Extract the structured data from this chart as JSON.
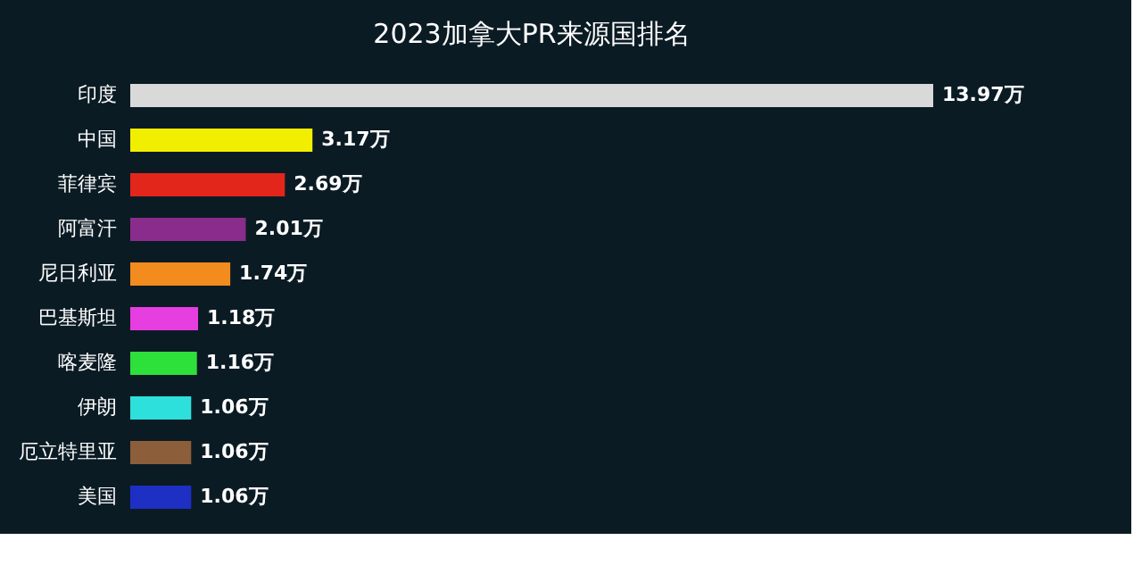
{
  "chart_data": {
    "type": "bar",
    "orientation": "horizontal",
    "title": "2023加拿大PR来源国排名",
    "categories": [
      "印度",
      "中国",
      "菲律宾",
      "阿富汗",
      "尼日利亚",
      "巴基斯坦",
      "喀麦隆",
      "伊朗",
      "厄立特里亚",
      "美国"
    ],
    "values": [
      13.97,
      3.17,
      2.69,
      2.01,
      1.74,
      1.18,
      1.16,
      1.06,
      1.06,
      1.06
    ],
    "value_labels": [
      "13.97万",
      "3.17万",
      "2.69万",
      "2.01万",
      "1.74万",
      "1.18万",
      "1.16万",
      "1.06万",
      "1.06万",
      "1.06万"
    ],
    "colors": [
      "#d9d9d9",
      "#f2ee00",
      "#e3261c",
      "#8a2c8c",
      "#f28c1e",
      "#e63ee0",
      "#2de03a",
      "#2ee0dc",
      "#8c5e3a",
      "#1e2fc4"
    ]
  }
}
